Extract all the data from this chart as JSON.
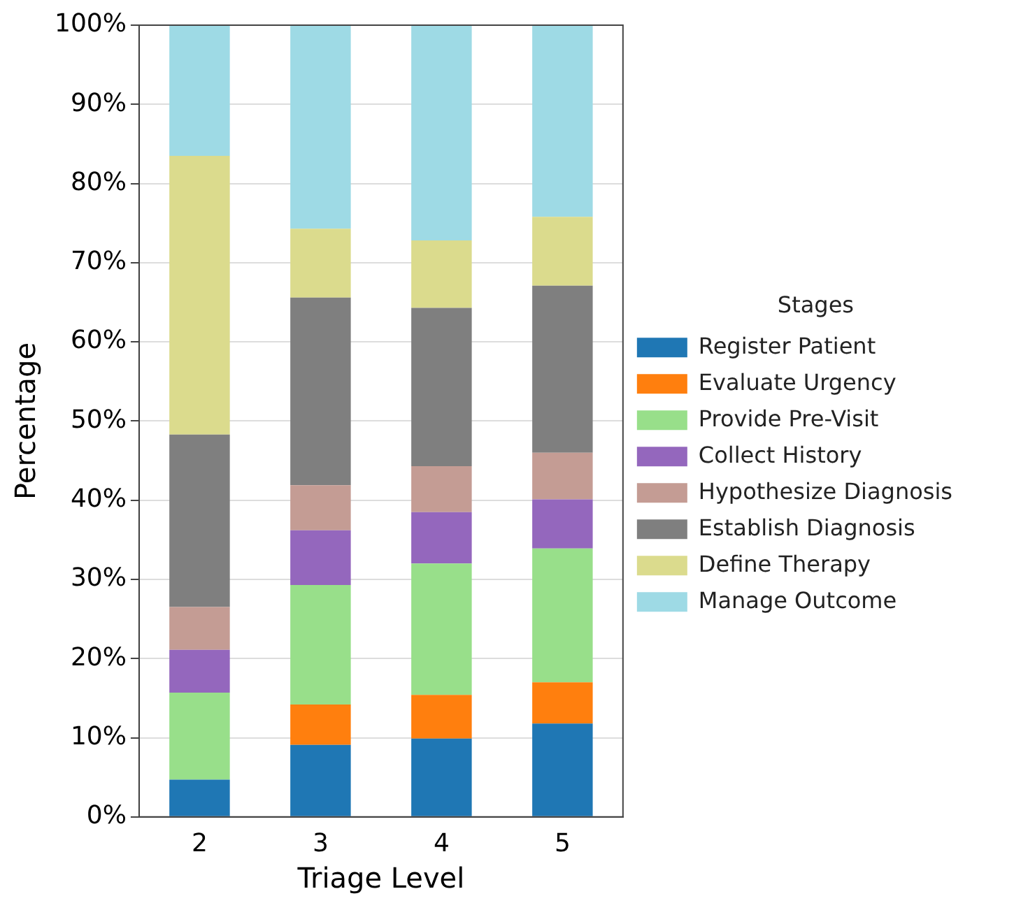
{
  "chart_data": {
    "type": "bar",
    "stacked": true,
    "xlabel": "Triage Level",
    "ylabel": "Percentage",
    "legend_title": "Stages",
    "legend": "right",
    "grid": "y",
    "categories": [
      "2",
      "3",
      "4",
      "5"
    ],
    "ylim": [
      0,
      100
    ],
    "yticks": [
      {
        "value": 0,
        "label": "0%"
      },
      {
        "value": 10,
        "label": "10%"
      },
      {
        "value": 20,
        "label": "20%"
      },
      {
        "value": 30,
        "label": "30%"
      },
      {
        "value": 40,
        "label": "40%"
      },
      {
        "value": 50,
        "label": "50%"
      },
      {
        "value": 60,
        "label": "60%"
      },
      {
        "value": 70,
        "label": "70%"
      },
      {
        "value": 80,
        "label": "80%"
      },
      {
        "value": 90,
        "label": "90%"
      },
      {
        "value": 100,
        "label": "100%"
      }
    ],
    "series": [
      {
        "name": "Register Patient",
        "color": "#1f77b4",
        "values": [
          4.7,
          9.1,
          9.9,
          11.8
        ]
      },
      {
        "name": "Evaluate Urgency",
        "color": "#ff7f0e",
        "values": [
          0,
          5.1,
          5.5,
          5.2
        ]
      },
      {
        "name": "Provide Pre-Visit",
        "color": "#98df8a",
        "values": [
          11.0,
          15.1,
          16.6,
          16.9
        ]
      },
      {
        "name": "Collect History",
        "color": "#9467bd",
        "values": [
          5.4,
          6.9,
          6.5,
          6.2
        ]
      },
      {
        "name": "Hypothesize Diagnosis",
        "color": "#c49c94",
        "values": [
          5.4,
          5.7,
          5.8,
          5.9
        ]
      },
      {
        "name": "Establish Diagnosis",
        "color": "#7f7f7f",
        "values": [
          21.8,
          23.7,
          20.0,
          21.1
        ]
      },
      {
        "name": "Define Therapy",
        "color": "#dbdb8d",
        "values": [
          35.2,
          8.7,
          8.5,
          8.7
        ]
      },
      {
        "name": "Manage Outcome",
        "color": "#9edae5",
        "values": [
          16.5,
          25.7,
          27.2,
          24.2
        ]
      }
    ]
  }
}
